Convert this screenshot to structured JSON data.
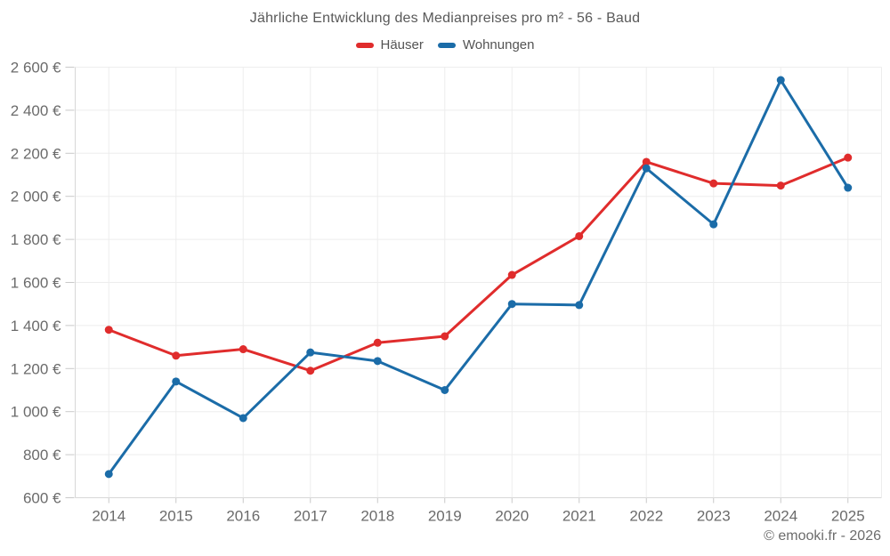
{
  "page": {
    "title": "Jährliche Entwicklung des Medianpreises pro m² - 56 - Baud",
    "footer": "© emooki.fr - 2026"
  },
  "legend": {
    "items": [
      {
        "label": "Häuser",
        "color": "#e02c2c"
      },
      {
        "label": "Wohnungen",
        "color": "#1b6ca8"
      }
    ]
  },
  "chart_data": {
    "type": "line",
    "title": "Jährliche Entwicklung des Medianpreises pro m² - 56 - Baud",
    "categories": [
      "2014",
      "2015",
      "2016",
      "2017",
      "2018",
      "2019",
      "2020",
      "2021",
      "2022",
      "2023",
      "2024",
      "2025"
    ],
    "series": [
      {
        "name": "Häuser",
        "color": "#e02c2c",
        "values": [
          1380,
          1260,
          1290,
          1190,
          1320,
          1350,
          1635,
          1815,
          2160,
          2060,
          2050,
          2180
        ]
      },
      {
        "name": "Wohnungen",
        "color": "#1b6ca8",
        "values": [
          710,
          1140,
          970,
          1275,
          1235,
          1100,
          1500,
          1495,
          2130,
          1870,
          2540,
          2040
        ]
      }
    ],
    "xlabel": "",
    "ylabel": "",
    "ylim": [
      600,
      2600
    ],
    "ytick_step": 200,
    "ytick_suffix": " €",
    "grid": true,
    "legend_position": "top",
    "marker_radius": 4.5,
    "line_width": 3
  },
  "style": {
    "grid_color": "#ededed",
    "axis_color": "#d7d7d7",
    "tick_color": "#c9c9c9",
    "tick_label_color": "#6b6b6b"
  }
}
